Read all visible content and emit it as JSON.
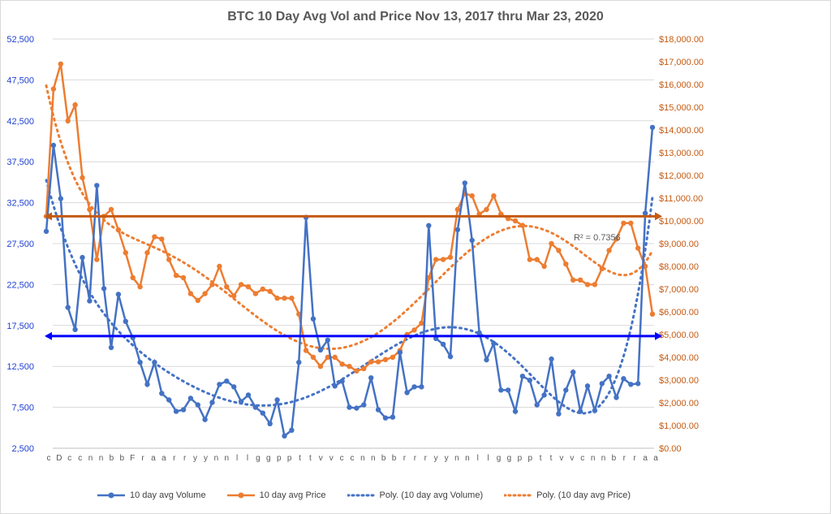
{
  "chart_data": {
    "type": "line",
    "title": "BTC 10 Day Avg Vol and Price Nov 13, 2017 thru Mar 23, 2020",
    "left_axis": {
      "ticks": [
        "2,500",
        "7,500",
        "12,500",
        "17,500",
        "22,500",
        "27,500",
        "32,500",
        "37,500",
        "42,500",
        "47,500",
        "52,500"
      ],
      "range": [
        2500,
        52500
      ],
      "color": "#1f3fd1"
    },
    "right_axis": {
      "ticks": [
        "$0.00",
        "$1,000.00",
        "$2,000.00",
        "$3,000.00",
        "$4,000.00",
        "$5,000.00",
        "$6,000.00",
        "$7,000.00",
        "$8,000.00",
        "$9,000.00",
        "$10,000.00",
        "$11,000.00",
        "$12,000.00",
        "$13,000.00",
        "$14,000.00",
        "$15,000.00",
        "$16,000.00",
        "$17,000.00",
        "$18,000.00"
      ],
      "range": [
        0,
        18000
      ],
      "color": "#c55a11"
    },
    "series": [
      {
        "name": "10 day avg Volume",
        "axis": "left",
        "color": "#4472c4",
        "values": [
          29000,
          39500,
          33000,
          19700,
          17000,
          25800,
          20500,
          34600,
          22000,
          14800,
          21300,
          18000,
          16000,
          13000,
          10300,
          13000,
          9200,
          8400,
          7000,
          7200,
          8600,
          7800,
          6000,
          8100,
          10300,
          10700,
          10000,
          8200,
          9000,
          7500,
          6800,
          5500,
          8400,
          4000,
          4700,
          13000,
          30700,
          18300,
          14500,
          15700,
          10100,
          10700,
          7500,
          7400,
          7800,
          11100,
          7200,
          6200,
          6300,
          14200,
          9300,
          10000,
          10000,
          29700,
          15900,
          15200,
          13700,
          29200,
          34900,
          27900,
          16600,
          13300,
          15300,
          9600,
          9600,
          7000,
          11300,
          10800,
          7800,
          9000,
          13400,
          6700,
          9600,
          11800,
          7000,
          10100,
          7100,
          10400,
          11300,
          8700,
          11000,
          10300,
          10400,
          31200,
          41700
        ]
      },
      {
        "name": "10 day avg Price",
        "axis": "right",
        "color": "#ed7d31",
        "values": [
          10200,
          15800,
          16900,
          14400,
          15100,
          11900,
          10500,
          8300,
          10200,
          10500,
          9600,
          8600,
          7500,
          7100,
          8600,
          9300,
          9200,
          8300,
          7600,
          7500,
          6800,
          6500,
          6800,
          7200,
          8000,
          7100,
          6700,
          7200,
          7100,
          6800,
          7000,
          6900,
          6600,
          6600,
          6600,
          5900,
          4300,
          4000,
          3600,
          4000,
          4000,
          3700,
          3600,
          3400,
          3500,
          3800,
          3800,
          3900,
          4000,
          4300,
          5000,
          5200,
          5500,
          7500,
          8300,
          8300,
          8400,
          10500,
          11200,
          11100,
          10300,
          10500,
          11100,
          10300,
          10100,
          10000,
          9800,
          8300,
          8300,
          8000,
          9000,
          8700,
          8100,
          7400,
          7400,
          7200,
          7200,
          7900,
          8700,
          9200,
          9900,
          9900,
          8800,
          8000,
          5900
        ]
      }
    ],
    "trendlines": [
      {
        "name": "Poly. (10 day avg Volume)",
        "color": "#4472c4",
        "axis": "left"
      },
      {
        "name": "Poly. (10 day avg Price)",
        "color": "#ed7d31",
        "axis": "right"
      }
    ],
    "reference_lines": [
      {
        "axis": "right",
        "value": 10200,
        "color": "#c55a11"
      },
      {
        "axis": "left",
        "value": 16200,
        "color": "#0000ff"
      }
    ],
    "annotation": "R² = 0.7356",
    "x_tick_labels": [
      "c",
      "D",
      "c",
      "c",
      "n",
      "n",
      "b",
      "b",
      "F",
      "r",
      "a",
      "a",
      "r",
      "r",
      "y",
      "y",
      "n",
      "n",
      "l",
      "l",
      "g",
      "g",
      "p",
      "p",
      "t",
      "t",
      "v",
      "v",
      "c",
      "c",
      "n",
      "n",
      "b",
      "b",
      "r",
      "r",
      "r",
      "y",
      "y",
      "n",
      "n",
      "l",
      "l",
      "g",
      "g",
      "p",
      "p",
      "t",
      "t",
      "v",
      "v",
      "c",
      "n",
      "n",
      "b",
      "r",
      "r",
      "a",
      "a"
    ],
    "grid": true,
    "legend_position": "bottom"
  }
}
